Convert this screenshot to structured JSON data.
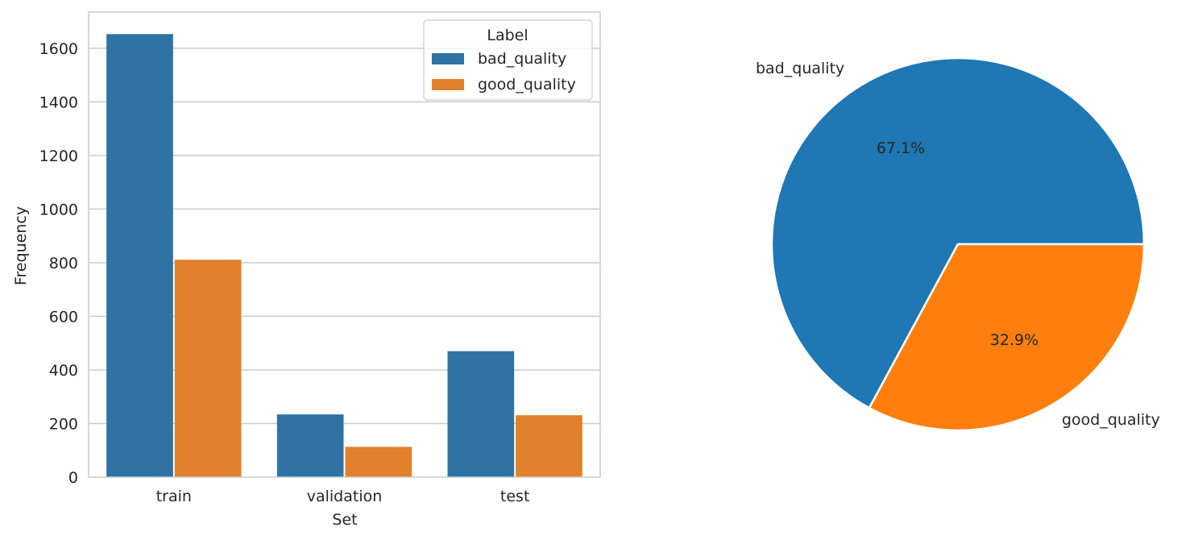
{
  "chart_data": [
    {
      "type": "bar",
      "categories": [
        "train",
        "validation",
        "test"
      ],
      "series": [
        {
          "name": "bad_quality",
          "values": [
            1653,
            234,
            470
          ]
        },
        {
          "name": "good_quality",
          "values": [
            811,
            113,
            231
          ]
        }
      ],
      "title": "",
      "xlabel": "Set",
      "ylabel": "Frequency",
      "ylim": [
        0,
        1735
      ],
      "yticks": [
        0,
        200,
        400,
        600,
        800,
        1000,
        1200,
        1400,
        1600
      ],
      "ytick_labels": [
        "0",
        "200",
        "400",
        "600",
        "800",
        "1000",
        "1200",
        "1400",
        "1600"
      ],
      "grid": true,
      "legend": {
        "title": "Label",
        "placement": "top-right",
        "entries": [
          "bad_quality",
          "good_quality"
        ]
      },
      "colors": [
        "#2e73a4",
        "#e1812c"
      ]
    },
    {
      "type": "pie",
      "labels": [
        "bad_quality",
        "good_quality"
      ],
      "values": [
        67.1,
        32.9
      ],
      "percent_labels": [
        "67.1%",
        "32.9%"
      ],
      "colors": [
        "#1f77b4",
        "#ff7f0e"
      ],
      "title": ""
    }
  ]
}
